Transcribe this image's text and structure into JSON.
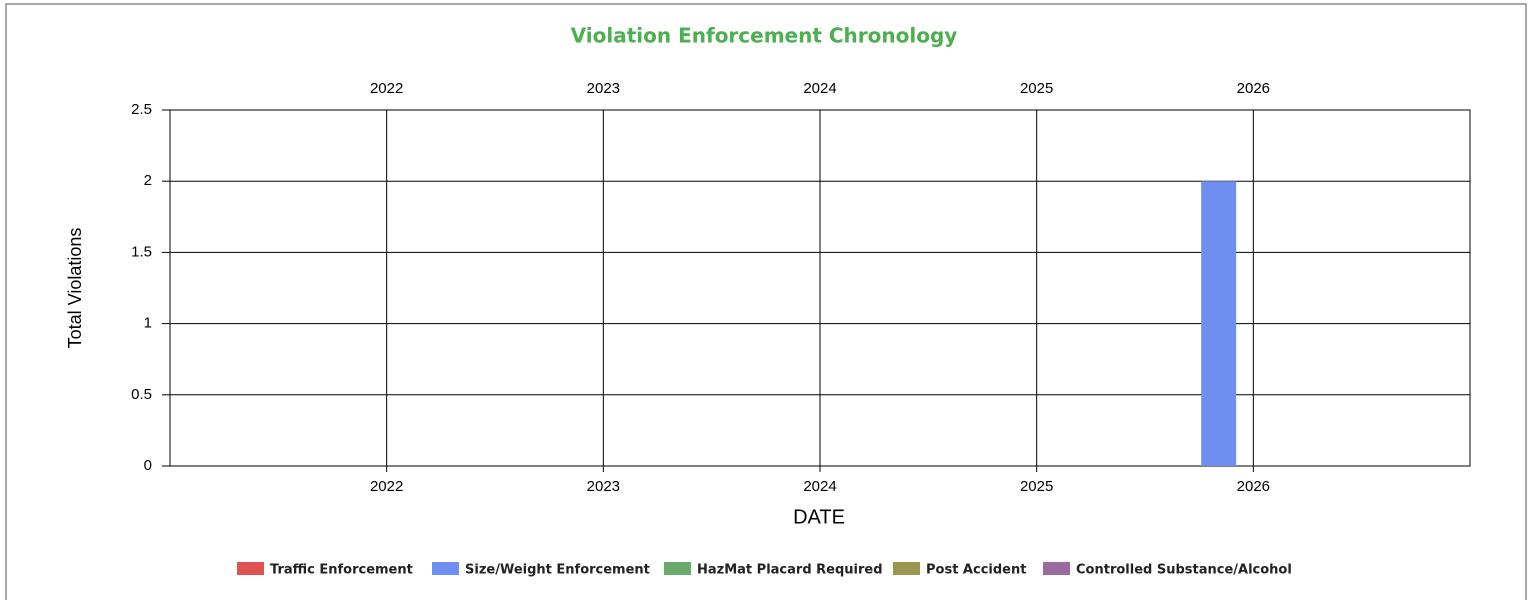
{
  "chart_data": {
    "type": "bar",
    "title": "Violation Enforcement Chronology",
    "ylabel": "Total Violations",
    "xlabel": "DATE",
    "x": [
      2025.84
    ],
    "series": [
      {
        "name": "Traffic Enforcement",
        "color": "#e05252",
        "values": [
          0
        ]
      },
      {
        "name": "Size/Weight Enforcement",
        "color": "#6f8ff0",
        "values": [
          2
        ]
      },
      {
        "name": "HazMat Placard Required",
        "color": "#6aaa6a",
        "values": [
          0
        ]
      },
      {
        "name": "Post Accident",
        "color": "#9a9650",
        "values": [
          0
        ]
      },
      {
        "name": "Controlled Substance/Alcohol",
        "color": "#9a6aa0",
        "values": [
          0
        ]
      }
    ],
    "stacked": true,
    "xlim": [
      2021,
      2027
    ],
    "xticks": [
      2022,
      2023,
      2024,
      2025,
      2026
    ],
    "ylim": [
      0,
      2.5
    ],
    "yticks": [
      0,
      0.5,
      1,
      1.5,
      2,
      2.5
    ],
    "grid": true,
    "legend": "bottom"
  }
}
